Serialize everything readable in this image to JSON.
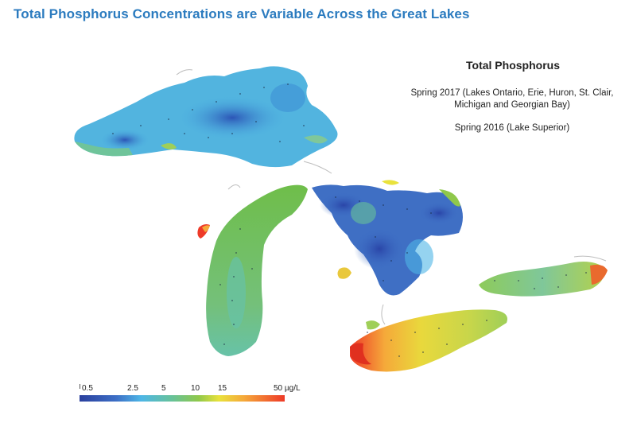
{
  "page": {
    "heading": "Total Phosphorus Concentrations are Variable Across the Great Lakes"
  },
  "map": {
    "title": "Total Phosphorus",
    "subtitle_lines": [
      "Spring 2017 (Lakes Ontario, Erie, Huron, St. Clair,",
      "Michigan and Georgian Bay)",
      "Spring 2016 (Lake Superior)"
    ],
    "lakes": [
      {
        "name": "Lake Superior",
        "dominant_color": "#4eb6e6"
      },
      {
        "name": "Lake Michigan",
        "dominant_color": "#6fbe4a"
      },
      {
        "name": "Lake Huron",
        "dominant_color": "#3d6fc6"
      },
      {
        "name": "Lake Erie",
        "dominant_color": "#e9e23c"
      },
      {
        "name": "Lake Ontario",
        "dominant_color": "#8fc84b"
      }
    ]
  },
  "legend": {
    "labels": [
      "0.5",
      "2.5",
      "5",
      "10",
      "15",
      "50 µg/L"
    ],
    "colors": [
      "#2a3f9d",
      "#3d6fc6",
      "#4eb6e6",
      "#67c29a",
      "#8fc84b",
      "#e9e23c",
      "#f5a93a",
      "#ee3a28"
    ]
  }
}
